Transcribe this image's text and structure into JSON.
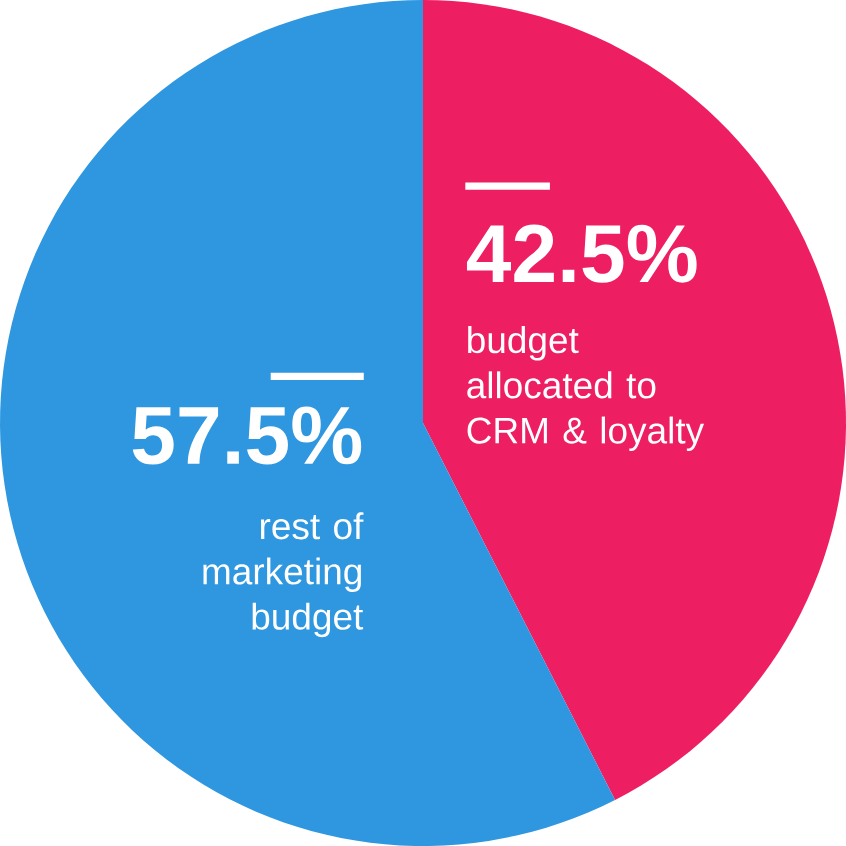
{
  "chart_data": {
    "type": "pie",
    "categories": [
      "budget allocated to CRM & loyalty",
      "rest of marketing budget"
    ],
    "values": [
      42.5,
      57.5
    ],
    "colors": [
      "#ee1e63",
      "#2f97e0"
    ],
    "value_labels": [
      "42.5%",
      "57.5%"
    ]
  }
}
